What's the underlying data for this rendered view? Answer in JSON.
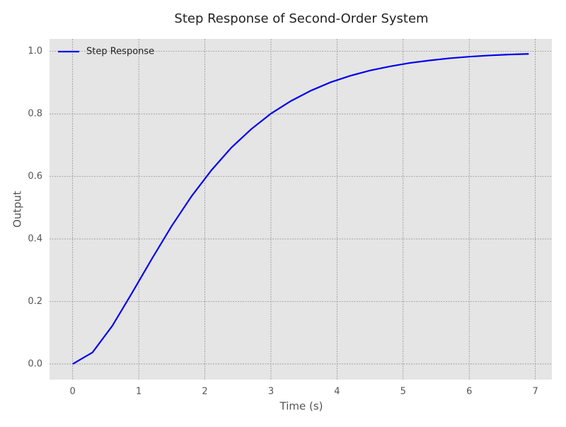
{
  "chart_data": {
    "type": "line",
    "title": "Step Response of Second-Order System",
    "x_label": "Time (s)",
    "y_label": "Output",
    "x": [
      0,
      0.3,
      0.6,
      0.9,
      1.2,
      1.5,
      1.8,
      2.1,
      2.4,
      2.7,
      3.0,
      3.3,
      3.6,
      3.9,
      4.2,
      4.5,
      4.8,
      5.1,
      5.4,
      5.7,
      6.0,
      6.3,
      6.6,
      6.9
    ],
    "series": [
      {
        "name": "Step Response",
        "color": "#0000ee",
        "values": [
          0,
          0.037,
          0.122,
          0.228,
          0.337,
          0.442,
          0.537,
          0.62,
          0.692,
          0.751,
          0.801,
          0.841,
          0.874,
          0.901,
          0.922,
          0.939,
          0.952,
          0.963,
          0.971,
          0.978,
          0.983,
          0.987,
          0.99,
          0.992
        ]
      }
    ],
    "xlim": [
      -0.35,
      7.25
    ],
    "ylim": [
      -0.05,
      1.04
    ],
    "xticks": [
      0,
      1,
      2,
      3,
      4,
      5,
      6,
      7
    ],
    "yticks": [
      {
        "value": 0,
        "label": "0.0"
      },
      0.2,
      0.4,
      0.6,
      0.8,
      {
        "value": 1,
        "label": "1.0"
      }
    ],
    "grid": true,
    "legend": "upper left"
  }
}
